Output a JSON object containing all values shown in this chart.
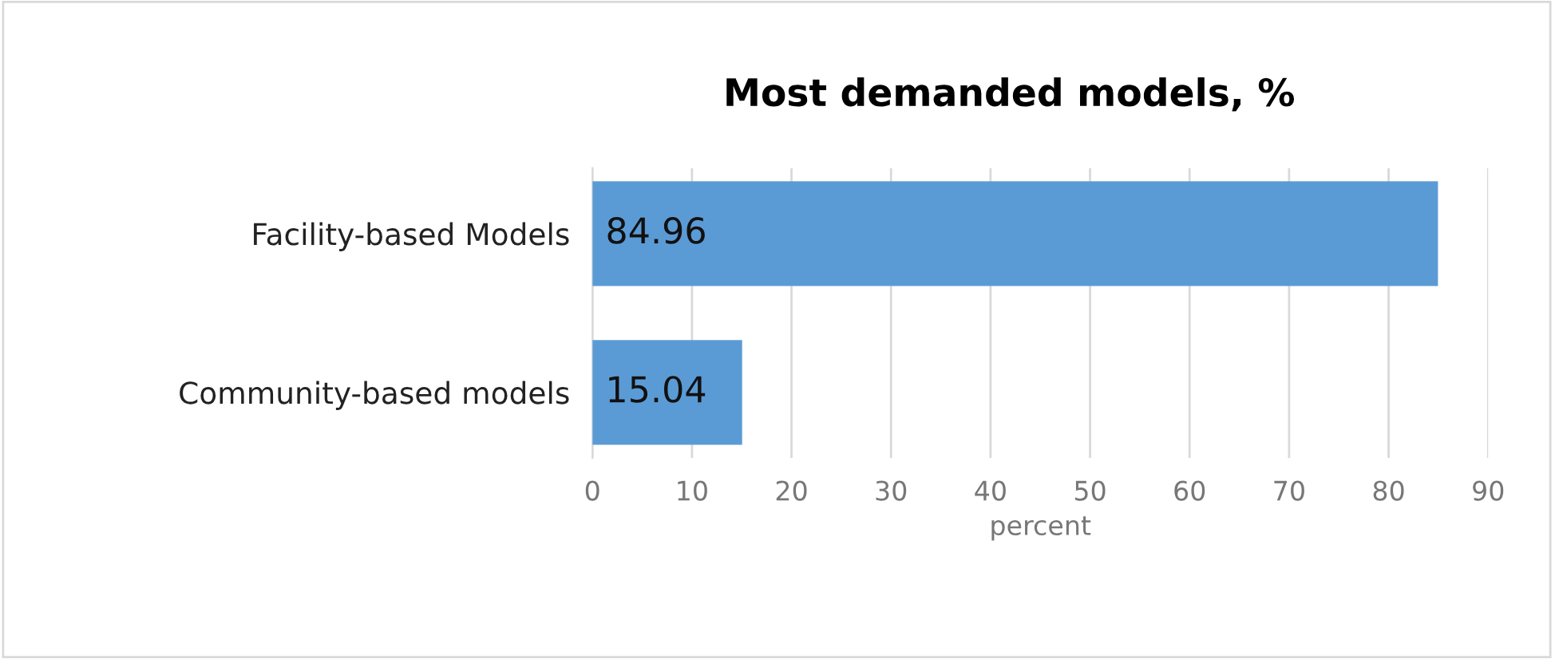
{
  "chart_data": {
    "type": "bar",
    "orientation": "horizontal",
    "title": "Most demanded models, %",
    "xlabel": "percent",
    "categories": [
      "Facility-based Models",
      "Community-based models"
    ],
    "values": [
      84.96,
      15.04
    ],
    "color": "#5b9bd5",
    "xlim": [
      0,
      90
    ],
    "xticks": [
      0,
      10,
      20,
      30,
      40,
      50,
      60,
      70,
      80,
      90
    ],
    "grid": "x",
    "data_labels": true,
    "legend": false
  }
}
